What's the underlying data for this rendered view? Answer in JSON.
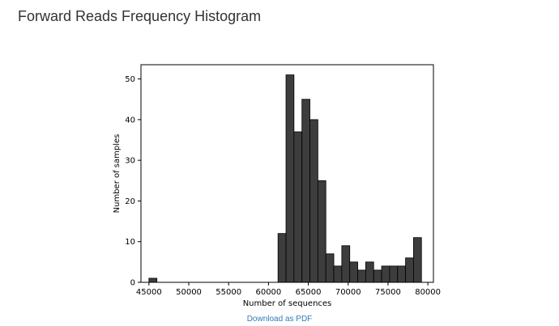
{
  "page": {
    "heading": "Forward Reads Frequency Histogram"
  },
  "download": {
    "label": "Download as PDF",
    "color": "#337ab7"
  },
  "chart_data": {
    "type": "bar",
    "title": "",
    "xlabel": "Number of sequences",
    "ylabel": "Number of samples",
    "xlim": [
      44000,
      80700
    ],
    "ylim": [
      0,
      53.5
    ],
    "bin_width": 1000,
    "x_ticks": [
      45000,
      50000,
      55000,
      60000,
      65000,
      70000,
      75000,
      80000
    ],
    "x_tick_labels": [
      "45000",
      "50000",
      "55000",
      "60000",
      "65000",
      "70000",
      "75000",
      "80000"
    ],
    "y_ticks": [
      0,
      10,
      20,
      30,
      40,
      50
    ],
    "y_tick_labels": [
      "0",
      "10",
      "20",
      "30",
      "40",
      "50"
    ],
    "bar_color": "#3d3d3d",
    "edge_color": "#000000",
    "grid": false,
    "bins": [
      {
        "x0": 45000,
        "x1": 46000,
        "value": 1
      },
      {
        "x0": 61200,
        "x1": 62200,
        "value": 12
      },
      {
        "x0": 62200,
        "x1": 63200,
        "value": 51
      },
      {
        "x0": 63200,
        "x1": 64200,
        "value": 37
      },
      {
        "x0": 64200,
        "x1": 65200,
        "value": 45
      },
      {
        "x0": 65200,
        "x1": 66200,
        "value": 40
      },
      {
        "x0": 66200,
        "x1": 67200,
        "value": 25
      },
      {
        "x0": 67200,
        "x1": 68200,
        "value": 7
      },
      {
        "x0": 68200,
        "x1": 69200,
        "value": 4
      },
      {
        "x0": 69200,
        "x1": 70200,
        "value": 9
      },
      {
        "x0": 70200,
        "x1": 71200,
        "value": 5
      },
      {
        "x0": 71200,
        "x1": 72200,
        "value": 3
      },
      {
        "x0": 72200,
        "x1": 73200,
        "value": 5
      },
      {
        "x0": 73200,
        "x1": 74200,
        "value": 3
      },
      {
        "x0": 74200,
        "x1": 75200,
        "value": 4
      },
      {
        "x0": 75200,
        "x1": 76200,
        "value": 4
      },
      {
        "x0": 76200,
        "x1": 77200,
        "value": 4
      },
      {
        "x0": 77200,
        "x1": 78200,
        "value": 6
      },
      {
        "x0": 78200,
        "x1": 79200,
        "value": 11
      }
    ]
  }
}
